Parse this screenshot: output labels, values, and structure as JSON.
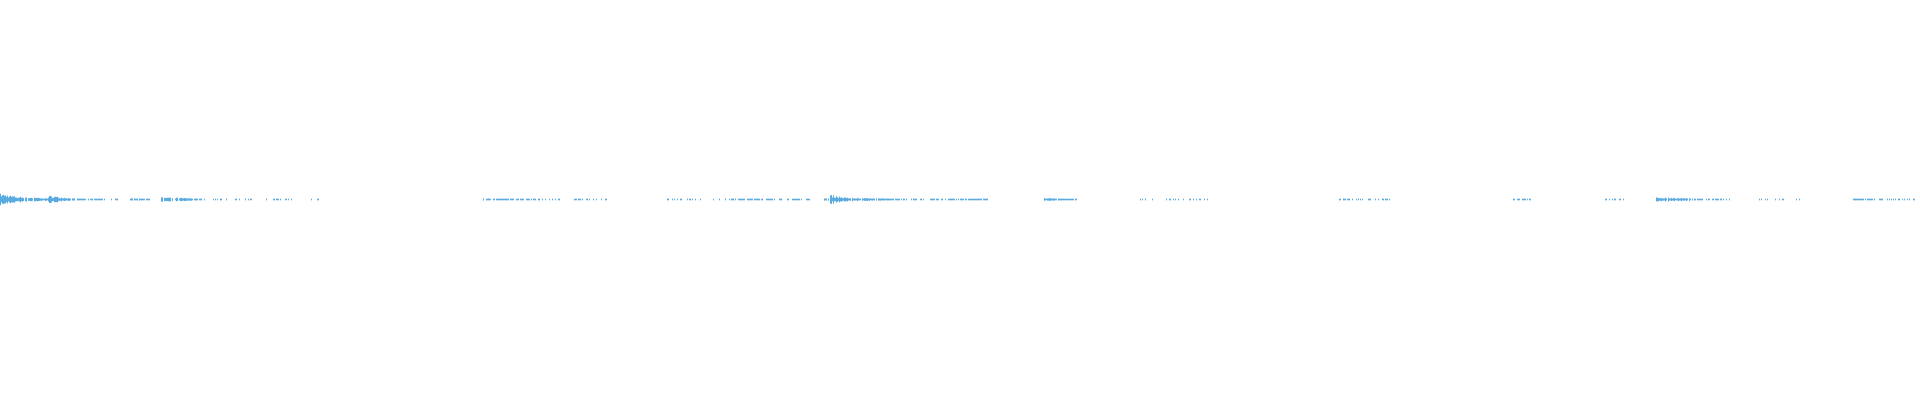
{
  "waveform": {
    "color": "#5aabe0",
    "background": "#ffffff"
  }
}
